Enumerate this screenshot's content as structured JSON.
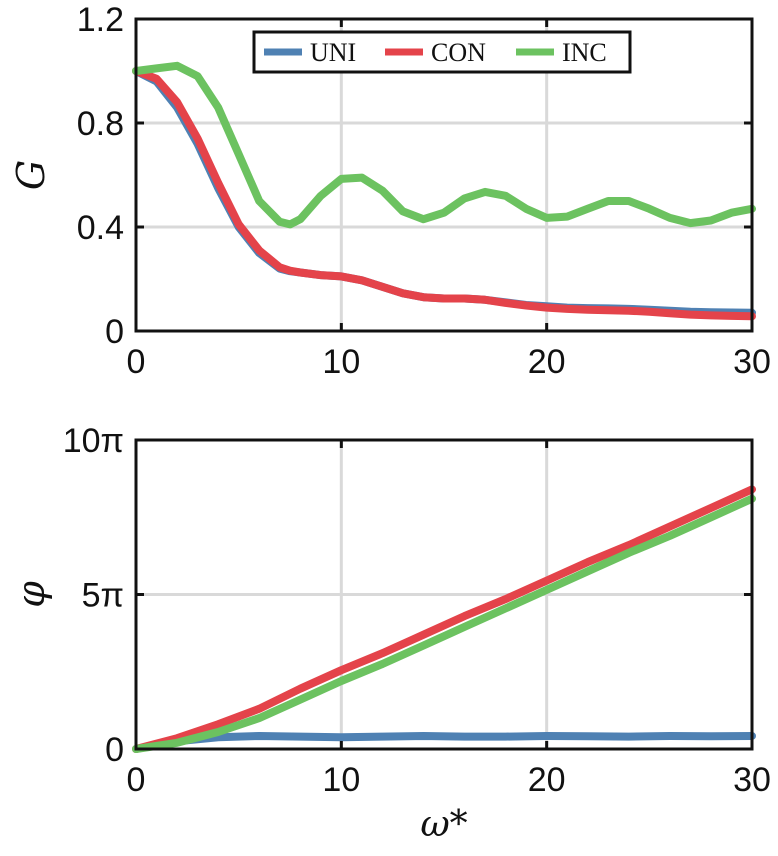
{
  "chart_data": [
    {
      "type": "line",
      "xlabel": "",
      "ylabel": "G",
      "xlim": [
        0,
        30
      ],
      "ylim": [
        0,
        1.2
      ],
      "xticks": [
        0,
        10,
        20,
        30
      ],
      "xtick_labels": [
        "0",
        "10",
        "20",
        "30"
      ],
      "yticks": [
        0,
        0.4,
        0.8,
        1.2
      ],
      "ytick_labels": [
        "0",
        "0.4",
        "0.8",
        "1.2"
      ],
      "grid": true,
      "legend": {
        "placement": "top-center",
        "orientation": "horizontal"
      },
      "x": [
        0,
        1,
        2,
        3,
        4,
        5,
        6,
        7,
        7.5,
        8,
        9,
        10,
        11,
        12,
        13,
        14,
        15,
        16,
        17,
        18,
        19,
        20,
        21,
        22,
        23,
        24,
        25,
        26,
        27,
        28,
        29,
        30
      ],
      "series": [
        {
          "name": "UNI",
          "color": "#4f81b3",
          "values": [
            1.0,
            0.96,
            0.86,
            0.72,
            0.55,
            0.4,
            0.3,
            0.24,
            0.23,
            0.225,
            0.215,
            0.21,
            0.195,
            0.17,
            0.145,
            0.13,
            0.125,
            0.125,
            0.12,
            0.11,
            0.1,
            0.095,
            0.09,
            0.088,
            0.087,
            0.085,
            0.082,
            0.078,
            0.074,
            0.072,
            0.071,
            0.07
          ]
        },
        {
          "name": "CON",
          "color": "#e4434a",
          "values": [
            1.0,
            0.97,
            0.88,
            0.74,
            0.57,
            0.41,
            0.31,
            0.245,
            0.232,
            0.225,
            0.215,
            0.21,
            0.195,
            0.17,
            0.145,
            0.13,
            0.125,
            0.125,
            0.12,
            0.108,
            0.098,
            0.09,
            0.085,
            0.082,
            0.08,
            0.078,
            0.074,
            0.068,
            0.063,
            0.06,
            0.058,
            0.057
          ]
        },
        {
          "name": "INC",
          "color": "#6cc260",
          "values": [
            1.0,
            1.01,
            1.02,
            0.98,
            0.86,
            0.68,
            0.5,
            0.42,
            0.41,
            0.43,
            0.52,
            0.585,
            0.59,
            0.54,
            0.46,
            0.43,
            0.455,
            0.51,
            0.535,
            0.52,
            0.47,
            0.435,
            0.44,
            0.47,
            0.5,
            0.5,
            0.47,
            0.435,
            0.415,
            0.425,
            0.455,
            0.47
          ]
        }
      ]
    },
    {
      "type": "line",
      "xlabel": "ω*",
      "ylabel": "φ",
      "xlim": [
        0,
        30
      ],
      "ylim": [
        0,
        10
      ],
      "y_unit": "π",
      "xticks": [
        0,
        10,
        20,
        30
      ],
      "xtick_labels": [
        "0",
        "10",
        "20",
        "30"
      ],
      "yticks": [
        0,
        5,
        10
      ],
      "ytick_labels": [
        "0",
        "5π",
        "10π"
      ],
      "grid": true,
      "x": [
        0,
        2,
        4,
        6,
        8,
        10,
        12,
        14,
        16,
        18,
        20,
        22,
        24,
        26,
        28,
        30
      ],
      "series": [
        {
          "name": "UNI",
          "color": "#4f81b3",
          "values": [
            0,
            0.25,
            0.38,
            0.42,
            0.4,
            0.38,
            0.4,
            0.42,
            0.4,
            0.4,
            0.42,
            0.41,
            0.4,
            0.42,
            0.41,
            0.42
          ]
        },
        {
          "name": "CON",
          "color": "#e4434a",
          "values": [
            0,
            0.35,
            0.8,
            1.3,
            1.95,
            2.55,
            3.1,
            3.7,
            4.3,
            4.85,
            5.45,
            6.05,
            6.6,
            7.2,
            7.8,
            8.4
          ]
        },
        {
          "name": "INC",
          "color": "#6cc260",
          "values": [
            0,
            0.2,
            0.55,
            1.0,
            1.6,
            2.2,
            2.75,
            3.35,
            3.95,
            4.55,
            5.15,
            5.75,
            6.35,
            6.9,
            7.5,
            8.1
          ]
        }
      ]
    }
  ]
}
